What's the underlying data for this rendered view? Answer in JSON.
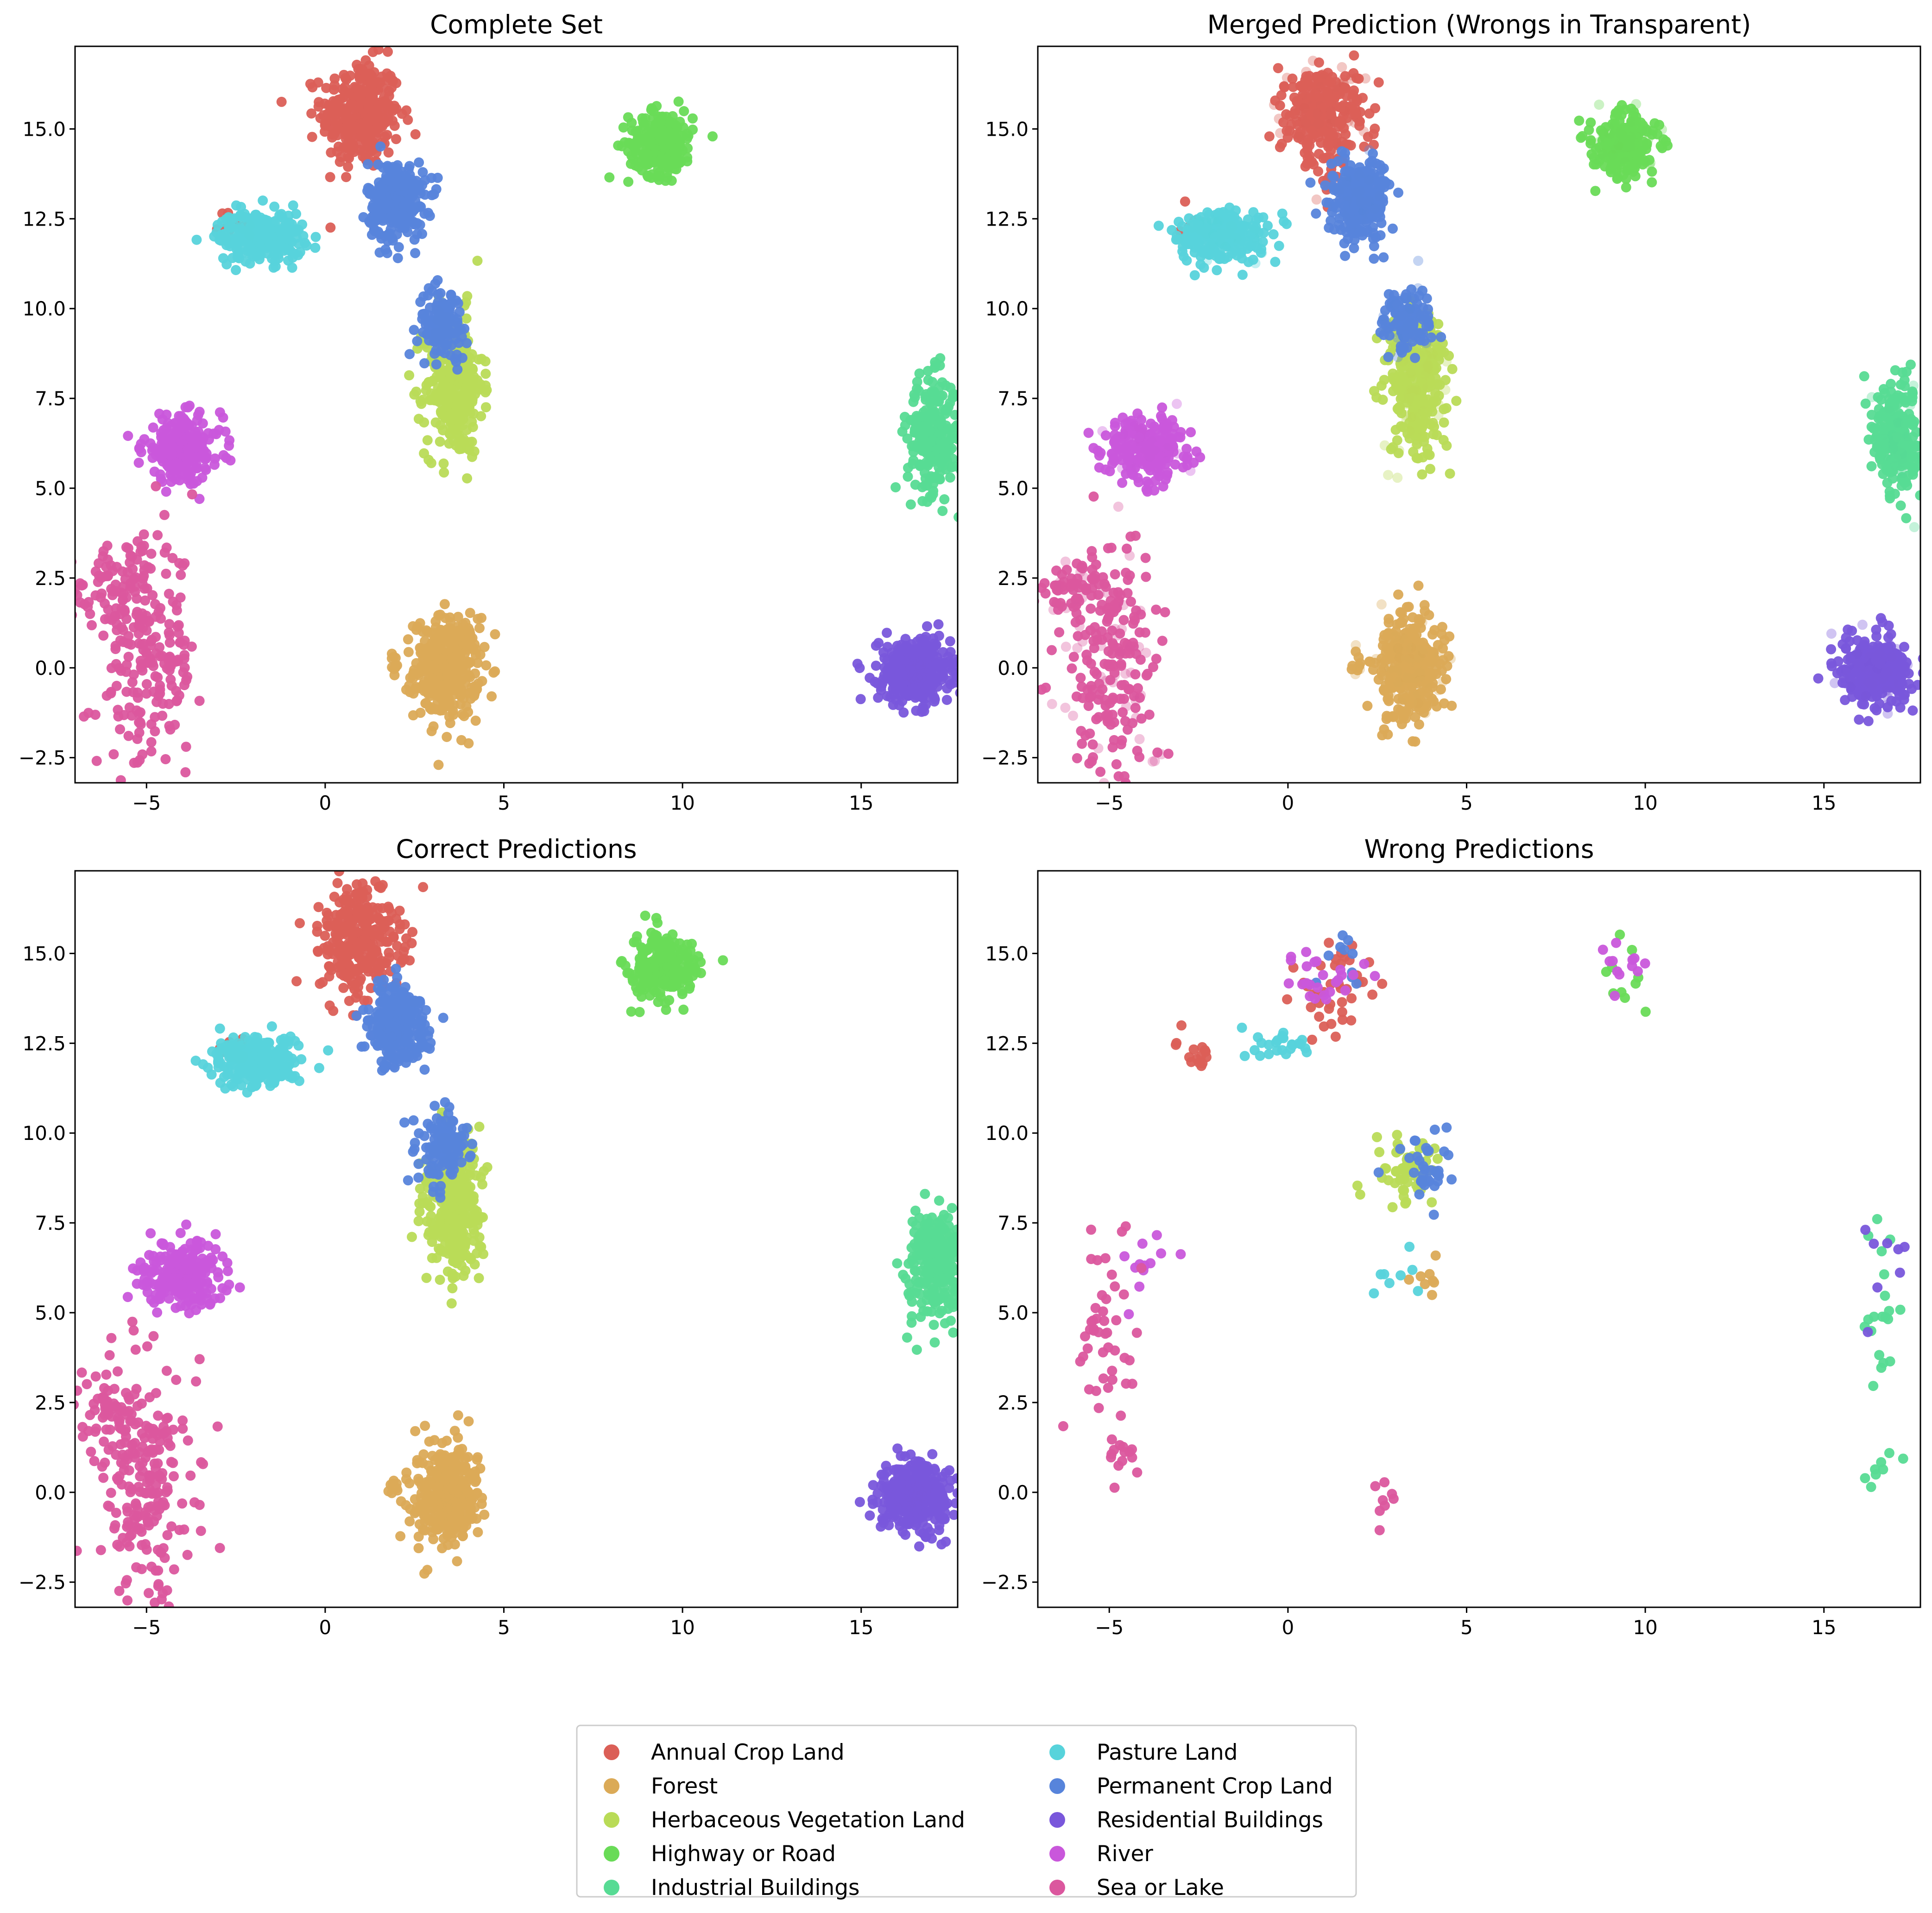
{
  "chart_data": [
    {
      "type": "scatter",
      "title": "Complete Set",
      "panel": "complete",
      "xlim": [
        -7,
        17.7
      ],
      "ylim": [
        -3.2,
        17.3
      ],
      "xticks": [
        -5,
        0,
        5,
        10,
        15
      ],
      "yticks": [
        -2.5,
        0.0,
        2.5,
        5.0,
        7.5,
        10.0,
        12.5,
        15.0
      ],
      "grid": false,
      "series_ref": "clusters"
    },
    {
      "type": "scatter",
      "title": "Merged Prediction (Wrongs in Transparent)",
      "panel": "merged",
      "xlim": [
        -7,
        17.7
      ],
      "ylim": [
        -3.2,
        17.3
      ],
      "xticks": [
        -5,
        0,
        5,
        10,
        15
      ],
      "yticks": [
        -2.5,
        0.0,
        2.5,
        5.0,
        7.5,
        10.0,
        12.5,
        15.0
      ],
      "grid": false,
      "series_ref": "clusters"
    },
    {
      "type": "scatter",
      "title": "Correct Predictions",
      "panel": "correct",
      "xlim": [
        -7,
        17.7
      ],
      "ylim": [
        -3.2,
        17.3
      ],
      "xticks": [
        -5,
        0,
        5,
        10,
        15
      ],
      "yticks": [
        -2.5,
        0.0,
        2.5,
        5.0,
        7.5,
        10.0,
        12.5,
        15.0
      ],
      "grid": false,
      "series_ref": "clusters"
    },
    {
      "type": "scatter",
      "title": "Wrong Predictions",
      "panel": "wrong",
      "xlim": [
        -7,
        17.7
      ],
      "ylim": [
        -3.2,
        17.3
      ],
      "xticks": [
        -5,
        0,
        5,
        10,
        15
      ],
      "yticks": [
        -2.5,
        0.0,
        2.5,
        5.0,
        7.5,
        10.0,
        12.5,
        15.0
      ],
      "grid": false,
      "series_ref": "wrong_points"
    }
  ],
  "legend": {
    "placement": "bottom-center",
    "columns": 2,
    "entries": [
      {
        "label": "Annual Crop Land",
        "color": "#db5f57"
      },
      {
        "label": "Forest",
        "color": "#dbaa57"
      },
      {
        "label": "Herbaceous Vegetation Land",
        "color": "#b9db57"
      },
      {
        "label": "Highway or Road",
        "color": "#69db57"
      },
      {
        "label": "Industrial Buildings",
        "color": "#57db94"
      },
      {
        "label": "Pasture Land",
        "color": "#57d3db"
      },
      {
        "label": "Permanent Crop Land",
        "color": "#5784db"
      },
      {
        "label": "Residential Buildings",
        "color": "#7957db"
      },
      {
        "label": "River",
        "color": "#c957db"
      },
      {
        "label": "Sea or Lake",
        "color": "#db579e"
      }
    ]
  },
  "clusters": [
    {
      "name": "Annual Crop Land",
      "color": "#db5f57",
      "cx": 1.0,
      "cy": 15.4,
      "sx": 0.55,
      "sy": 0.75,
      "n": 320
    },
    {
      "name": "Annual Crop Land",
      "color": "#db5f57",
      "cx": -2.5,
      "cy": 12.3,
      "sx": 0.25,
      "sy": 0.2,
      "n": 20
    },
    {
      "name": "Forest",
      "color": "#dbaa57",
      "cx": 3.4,
      "cy": 0.0,
      "sx": 0.45,
      "sy": 0.7,
      "n": 360
    },
    {
      "name": "Forest",
      "color": "#dbaa57",
      "cx": 1.9,
      "cy": 0.1,
      "sx": 0.08,
      "sy": 0.2,
      "n": 10
    },
    {
      "name": "Herbaceous Vegetation Land",
      "color": "#b9db57",
      "cx": 3.6,
      "cy": 7.9,
      "sx": 0.4,
      "sy": 1.0,
      "n": 330
    },
    {
      "name": "Highway or Road",
      "color": "#69db57",
      "cx": 9.4,
      "cy": 14.6,
      "sx": 0.45,
      "sy": 0.45,
      "n": 250
    },
    {
      "name": "Industrial Buildings",
      "color": "#57db94",
      "cx": 17.0,
      "cy": 6.5,
      "sx": 0.35,
      "sy": 0.8,
      "n": 260
    },
    {
      "name": "Pasture Land",
      "color": "#57d3db",
      "cx": -1.8,
      "cy": 12.0,
      "sx": 0.6,
      "sy": 0.35,
      "n": 250
    },
    {
      "name": "Permanent Crop Land",
      "color": "#5784db",
      "cx": 2.0,
      "cy": 13.0,
      "sx": 0.4,
      "sy": 0.55,
      "n": 290
    },
    {
      "name": "Permanent Crop Land",
      "color": "#5784db",
      "cx": 3.3,
      "cy": 9.6,
      "sx": 0.35,
      "sy": 0.5,
      "n": 120
    },
    {
      "name": "Residential Buildings",
      "color": "#7957db",
      "cx": 16.5,
      "cy": -0.1,
      "sx": 0.5,
      "sy": 0.45,
      "n": 380
    },
    {
      "name": "River",
      "color": "#c957db",
      "cx": -4.0,
      "cy": 6.1,
      "sx": 0.55,
      "sy": 0.45,
      "n": 240
    },
    {
      "name": "Sea or Lake",
      "color": "#db579e",
      "cx": -5.0,
      "cy": 0.3,
      "sx": 0.7,
      "sy": 1.6,
      "n": 220
    },
    {
      "name": "Sea or Lake",
      "color": "#db579e",
      "cx": -6.0,
      "cy": 2.2,
      "sx": 0.6,
      "sy": 0.5,
      "n": 60
    }
  ],
  "wrong_points": [
    {
      "name": "Annual Crop Land",
      "color": "#db5f57",
      "cx": 1.3,
      "cy": 14.0,
      "sx": 0.6,
      "sy": 0.6,
      "n": 40
    },
    {
      "name": "Annual Crop Land",
      "color": "#db5f57",
      "cx": -2.6,
      "cy": 12.2,
      "sx": 0.3,
      "sy": 0.3,
      "n": 15
    },
    {
      "name": "Forest",
      "color": "#dbaa57",
      "cx": 3.8,
      "cy": 6.0,
      "sx": 0.3,
      "sy": 0.4,
      "n": 8
    },
    {
      "name": "Herbaceous Vegetation Land",
      "color": "#b9db57",
      "cx": 3.3,
      "cy": 9.0,
      "sx": 0.45,
      "sy": 0.6,
      "n": 60
    },
    {
      "name": "Highway or Road",
      "color": "#69db57",
      "cx": 9.3,
      "cy": 14.3,
      "sx": 0.5,
      "sy": 0.5,
      "n": 10
    },
    {
      "name": "Industrial Buildings",
      "color": "#57db94",
      "cx": 16.6,
      "cy": 5.5,
      "sx": 0.3,
      "sy": 1.2,
      "n": 20
    },
    {
      "name": "Industrial Buildings",
      "color": "#57db94",
      "cx": 16.5,
      "cy": 0.6,
      "sx": 0.3,
      "sy": 0.2,
      "n": 8
    },
    {
      "name": "Pasture Land",
      "color": "#57d3db",
      "cx": -0.3,
      "cy": 12.5,
      "sx": 0.5,
      "sy": 0.25,
      "n": 25
    },
    {
      "name": "Pasture Land",
      "color": "#57d3db",
      "cx": 3.1,
      "cy": 6.0,
      "sx": 0.3,
      "sy": 0.5,
      "n": 8
    },
    {
      "name": "Permanent Crop Land",
      "color": "#5784db",
      "cx": 3.9,
      "cy": 9.0,
      "sx": 0.4,
      "sy": 0.5,
      "n": 35
    },
    {
      "name": "Permanent Crop Land",
      "color": "#5784db",
      "cx": 1.6,
      "cy": 15.0,
      "sx": 0.3,
      "sy": 0.6,
      "n": 10
    },
    {
      "name": "Residential Buildings",
      "color": "#7957db",
      "cx": 16.7,
      "cy": 6.5,
      "sx": 0.3,
      "sy": 0.8,
      "n": 8
    },
    {
      "name": "River",
      "color": "#c957db",
      "cx": 1.0,
      "cy": 14.5,
      "sx": 0.5,
      "sy": 0.4,
      "n": 25
    },
    {
      "name": "River",
      "color": "#c957db",
      "cx": -3.8,
      "cy": 6.5,
      "sx": 0.4,
      "sy": 0.6,
      "n": 12
    },
    {
      "name": "River",
      "color": "#c957db",
      "cx": 9.5,
      "cy": 14.6,
      "sx": 0.4,
      "sy": 0.5,
      "n": 12
    },
    {
      "name": "Sea or Lake",
      "color": "#db579e",
      "cx": -5.3,
      "cy": 4.5,
      "sx": 0.4,
      "sy": 1.2,
      "n": 45
    },
    {
      "name": "Sea or Lake",
      "color": "#db579e",
      "cx": -4.7,
      "cy": 1.0,
      "sx": 0.2,
      "sy": 0.4,
      "n": 15
    },
    {
      "name": "Sea or Lake",
      "color": "#db579e",
      "cx": 2.6,
      "cy": -0.4,
      "sx": 0.2,
      "sy": 0.3,
      "n": 8
    }
  ]
}
